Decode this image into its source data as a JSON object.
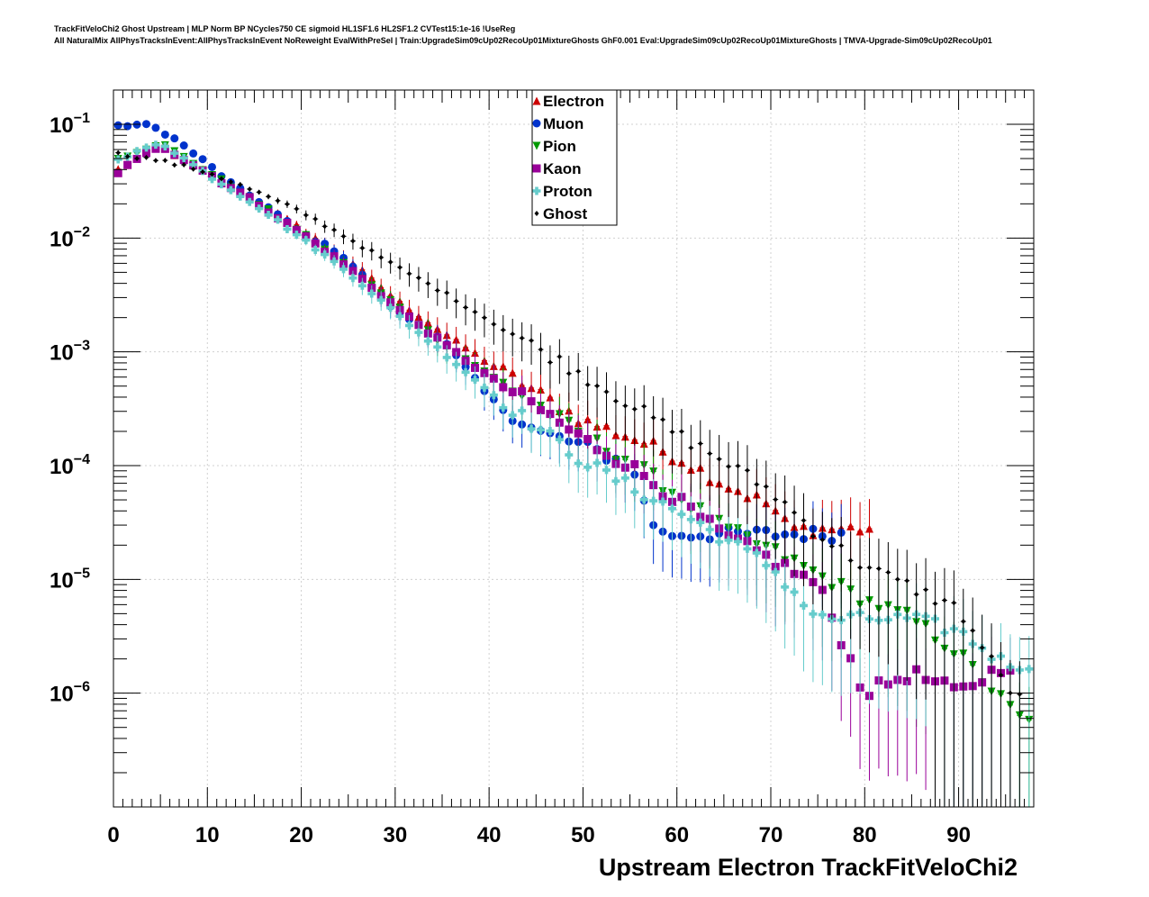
{
  "header": {
    "line1": "TrackFitVeloChi2 Ghost Upstream | MLP Norm BP NCycles750 CE sigmoid HL1SF1.6 HL2SF1.2 CVTest15:1e-16 !UseReg",
    "line2": "All NaturalMix AllPhysTracksInEvent:AllPhysTracksInEvent NoReweight EvalWithPreSel | Train:UpgradeSim09cUp02RecoUp01MixtureGhosts GhF0.001 Eval:UpgradeSim09cUp02RecoUp01MixtureGhosts | TMVA-Upgrade-Sim09cUp02RecoUp01"
  },
  "chart_data": {
    "type": "scatter",
    "xlabel": "Upstream Electron TrackFitVeloChi2",
    "ylabel": "",
    "xlim": [
      0,
      98
    ],
    "ylim": [
      1e-07,
      0.2
    ],
    "log_y": true,
    "grid": true,
    "legend_position": "top-center",
    "x_ticks": [
      "0",
      "10",
      "20",
      "30",
      "40",
      "50",
      "60",
      "70",
      "80",
      "90"
    ],
    "y_ticks": [
      {
        "base": "10",
        "exp": "−1",
        "value": 0.1
      },
      {
        "base": "10",
        "exp": "−2",
        "value": 0.01
      },
      {
        "base": "10",
        "exp": "−3",
        "value": 0.001
      },
      {
        "base": "10",
        "exp": "−4",
        "value": 0.0001
      },
      {
        "base": "10",
        "exp": "−5",
        "value": 1e-05
      },
      {
        "base": "10",
        "exp": "−6",
        "value": 1e-06
      }
    ],
    "series": [
      {
        "name": "Electron",
        "color": "#cc0000",
        "marker": "triangle-up",
        "x": [
          0.5,
          5,
          10,
          15,
          20,
          25,
          30,
          35,
          40,
          45,
          50,
          55,
          60,
          65,
          70,
          72,
          80
        ],
        "y": [
          0.04,
          0.065,
          0.037,
          0.022,
          0.012,
          0.0065,
          0.0029,
          0.0015,
          0.0008,
          0.00045,
          0.00025,
          0.00018,
          0.00012,
          7e-05,
          4.5e-05,
          2.8e-05,
          2.8e-05
        ]
      },
      {
        "name": "Muon",
        "color": "#0033cc",
        "marker": "circle",
        "x": [
          0.5,
          2,
          4,
          6,
          10,
          13,
          16,
          20,
          24,
          28,
          30,
          35,
          40,
          45,
          50,
          55,
          58,
          60,
          65,
          77
        ],
        "y": [
          0.095,
          0.1,
          0.097,
          0.08,
          0.045,
          0.028,
          0.02,
          0.011,
          0.0075,
          0.0035,
          0.0023,
          0.0013,
          0.0004,
          0.0002,
          0.00015,
          0.0001,
          2.5e-05,
          2.5e-05,
          2.5e-05,
          2.5e-05
        ]
      },
      {
        "name": "Pion",
        "color": "#009900",
        "marker": "triangle-down",
        "x": [
          0.5,
          5,
          10,
          15,
          20,
          25,
          30,
          35,
          40,
          45,
          50,
          55,
          60,
          65,
          70,
          75,
          80,
          85,
          90,
          95,
          97
        ],
        "y": [
          0.05,
          0.068,
          0.038,
          0.021,
          0.011,
          0.0055,
          0.0026,
          0.0012,
          0.00062,
          0.00035,
          0.00018,
          0.00011,
          5.5e-05,
          2.8e-05,
          1.8e-05,
          1.1e-05,
          6.5e-06,
          4.5e-06,
          2.2e-06,
          8e-07,
          5.5e-07
        ]
      },
      {
        "name": "Kaon",
        "color": "#990099",
        "marker": "square",
        "x": [
          0.5,
          5,
          10,
          15,
          20,
          25,
          30,
          35,
          40,
          45,
          50,
          55,
          60,
          65,
          70,
          75,
          80,
          85,
          90,
          95
        ],
        "y": [
          0.038,
          0.066,
          0.037,
          0.021,
          0.011,
          0.0055,
          0.0025,
          0.0012,
          0.0006,
          0.00033,
          0.00017,
          0.0001,
          5e-05,
          2.4e-05,
          1.5e-05,
          9e-06,
          1e-06,
          1.5e-06,
          1e-06,
          1.8e-06
        ]
      },
      {
        "name": "Proton",
        "color": "#66cccc",
        "marker": "cross",
        "x": [
          0.5,
          5,
          10,
          15,
          20,
          25,
          30,
          35,
          40,
          45,
          50,
          55,
          60,
          65,
          70,
          75,
          80,
          85,
          90,
          95,
          97
        ],
        "y": [
          0.048,
          0.07,
          0.036,
          0.02,
          0.01,
          0.005,
          0.0022,
          0.001,
          0.00045,
          0.00022,
          0.00011,
          6.5e-05,
          4e-05,
          2.3e-05,
          1.3e-05,
          4.5e-06,
          4.5e-06,
          4.5e-06,
          3.5e-06,
          1.8e-06,
          1.8e-06
        ]
      },
      {
        "name": "Ghost",
        "color": "#000000",
        "marker": "diamond",
        "x": [
          0.5,
          5,
          10,
          15,
          20,
          25,
          30,
          35,
          40,
          45,
          50,
          55,
          60,
          65,
          70,
          75,
          80,
          85,
          90,
          95,
          97
        ],
        "y": [
          0.055,
          0.048,
          0.038,
          0.026,
          0.017,
          0.01,
          0.0057,
          0.0034,
          0.0019,
          0.0011,
          0.00062,
          0.00035,
          0.00019,
          0.00011,
          6e-05,
          2.5e-05,
          1.3e-05,
          8.5e-06,
          5.5e-06,
          1.2e-06,
          8e-07
        ]
      }
    ]
  }
}
